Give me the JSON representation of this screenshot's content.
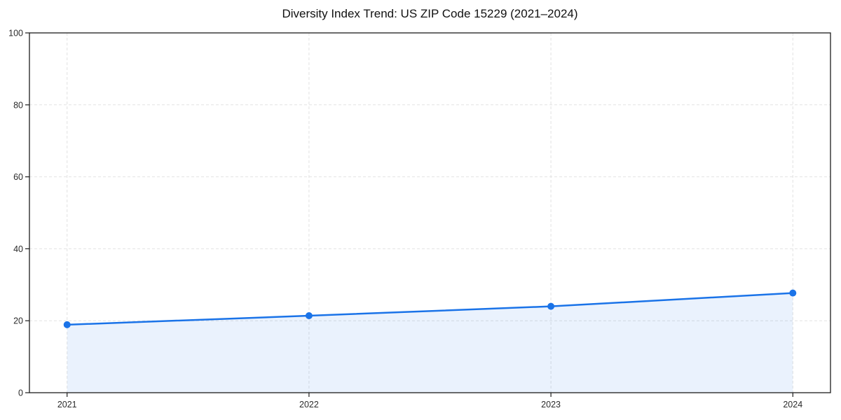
{
  "chart_data": {
    "type": "area",
    "title": "Diversity Index Trend: US ZIP Code 15229 (2021–2024)",
    "categories": [
      "2021",
      "2022",
      "2023",
      "2024"
    ],
    "values": [
      18.9,
      21.4,
      24.0,
      27.7
    ],
    "xlabel": "",
    "ylabel": "",
    "ylim": [
      0,
      100
    ],
    "yticks": [
      0,
      20,
      40,
      60,
      80,
      100
    ],
    "grid": true,
    "grid_style": "dashed",
    "legend": false,
    "colors": {
      "line": "#1a73e8",
      "marker": "#1a73e8",
      "fill": "rgba(26,115,232,0.09)",
      "grid": "#e2e2e2",
      "spine": "#1c1c1c",
      "tick": "#1c1c1c",
      "tick_label": "#2b2b2b",
      "title": "#111111",
      "background": "#ffffff"
    }
  }
}
